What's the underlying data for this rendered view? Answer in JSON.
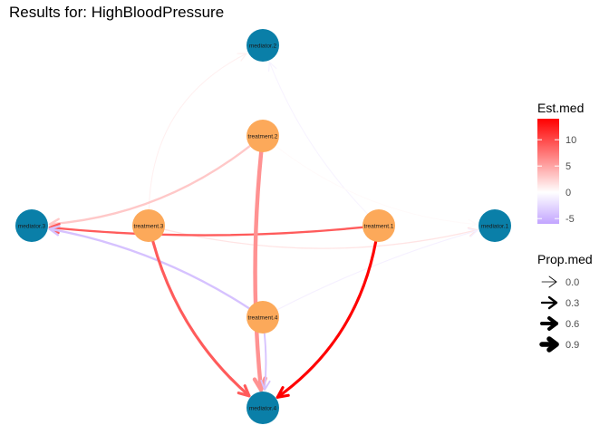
{
  "title": "Results for: HighBloodPressure",
  "colors": {
    "mediator_node": "#0a7fa8",
    "treatment_node": "#fca95a",
    "scale_high": "#ff0000",
    "scale_mid": "#ffffff",
    "scale_low": "#c2a4ff"
  },
  "nodes": [
    {
      "id": "mediator.2",
      "label": "mediator.2",
      "type": "mediator"
    },
    {
      "id": "treatment.2",
      "label": "treatment.2",
      "type": "treatment"
    },
    {
      "id": "mediator.3",
      "label": "mediator.3",
      "type": "mediator"
    },
    {
      "id": "treatment.3",
      "label": "treatment.3",
      "type": "treatment"
    },
    {
      "id": "treatment.1",
      "label": "treatment.1",
      "type": "treatment"
    },
    {
      "id": "mediator.1",
      "label": "mediator.1",
      "type": "mediator"
    },
    {
      "id": "treatment.4",
      "label": "treatment.4",
      "type": "treatment"
    },
    {
      "id": "mediator.4",
      "label": "mediator.4",
      "type": "mediator"
    }
  ],
  "edges": [
    {
      "from": "treatment.3",
      "to": "mediator.2",
      "est_med": 0.8,
      "prop_med": 0.05
    },
    {
      "from": "treatment.1",
      "to": "mediator.2",
      "est_med": -0.8,
      "prop_med": 0.05
    },
    {
      "from": "treatment.2",
      "to": "mediator.1",
      "est_med": 0.3,
      "prop_med": 0.05
    },
    {
      "from": "treatment.3",
      "to": "mediator.1",
      "est_med": 1.5,
      "prop_med": 0.1
    },
    {
      "from": "treatment.4",
      "to": "mediator.1",
      "est_med": -1.0,
      "prop_med": 0.05
    },
    {
      "from": "treatment.2",
      "to": "mediator.3",
      "est_med": 3.0,
      "prop_med": 0.3
    },
    {
      "from": "treatment.1",
      "to": "mediator.3",
      "est_med": 9.0,
      "prop_med": 0.3
    },
    {
      "from": "treatment.4",
      "to": "mediator.3",
      "est_med": -4.0,
      "prop_med": 0.3
    },
    {
      "from": "treatment.2",
      "to": "mediator.4",
      "est_med": 6.0,
      "prop_med": 0.7
    },
    {
      "from": "treatment.3",
      "to": "mediator.4",
      "est_med": 9.0,
      "prop_med": 0.45
    },
    {
      "from": "treatment.1",
      "to": "mediator.4",
      "est_med": 14.0,
      "prop_med": 0.45
    },
    {
      "from": "treatment.4",
      "to": "mediator.4",
      "est_med": -4.0,
      "prop_med": 0.2
    }
  ],
  "legend": {
    "color": {
      "title": "Est.med",
      "min": -6,
      "max": 14,
      "ticks": [
        {
          "value": 10,
          "label": "10"
        },
        {
          "value": 5,
          "label": "5"
        },
        {
          "value": 0,
          "label": "0"
        },
        {
          "value": -5,
          "label": "-5"
        }
      ]
    },
    "width": {
      "title": "Prop.med",
      "items": [
        {
          "value": 0.0,
          "label": "0.0"
        },
        {
          "value": 0.3,
          "label": "0.3"
        },
        {
          "value": 0.6,
          "label": "0.6"
        },
        {
          "value": 0.9,
          "label": "0.9"
        }
      ]
    }
  }
}
